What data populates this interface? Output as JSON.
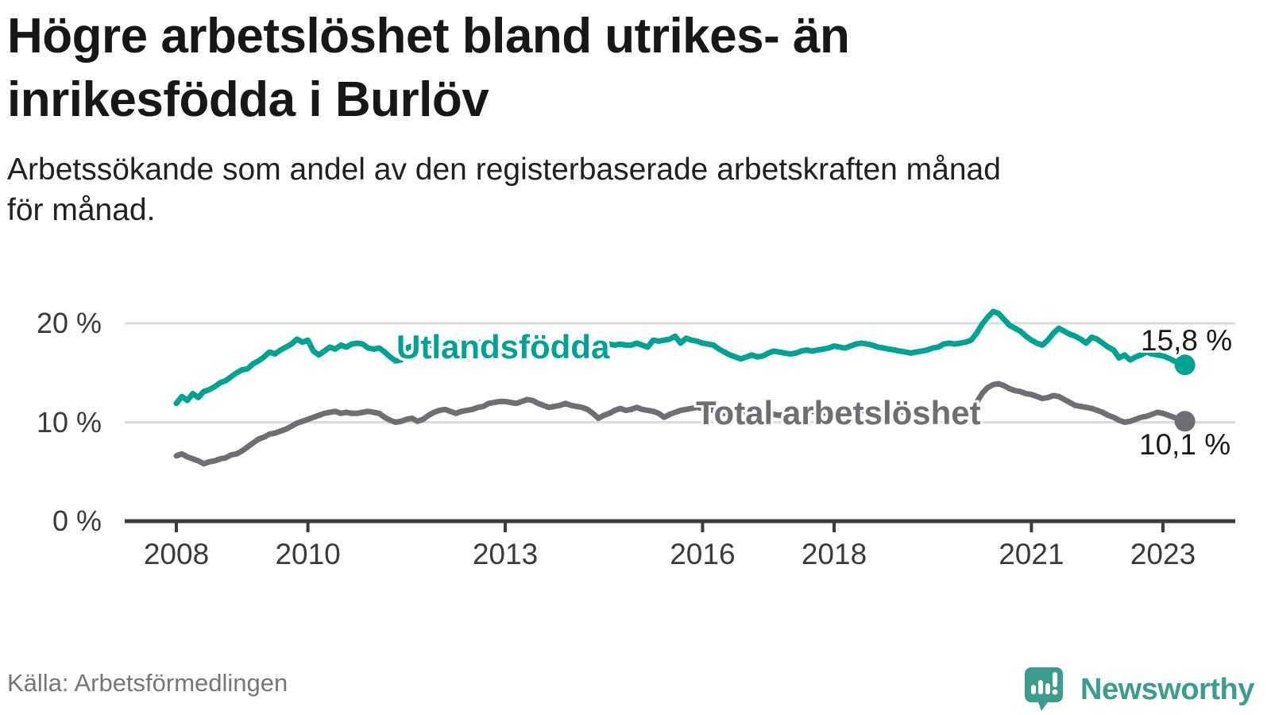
{
  "header": {
    "title_line1": "Högre arbetslöshet bland utrikes- än",
    "title_line2": "inrikesfödda i Burlöv",
    "subtitle_line1": "Arbetssökande som andel av den registerbaserade arbetskraften månad",
    "subtitle_line2": "för månad."
  },
  "chart_data": {
    "type": "line",
    "title": "Högre arbetslöshet bland utrikes- än inrikesfödda i Burlöv",
    "subtitle": "Arbetssökande som andel av den registerbaserade arbetskraften månad för månad.",
    "unit": "%",
    "x_start_year": 2008,
    "x_frequency": "monthly",
    "x_end_label": "2023",
    "ylim": [
      0,
      22.5
    ],
    "grid": "horizontal",
    "legend_position": "inline-labels",
    "y_ticks": [
      {
        "value": 0,
        "label": "0 %"
      },
      {
        "value": 10,
        "label": "10 %"
      },
      {
        "value": 20,
        "label": "20 %"
      }
    ],
    "x_ticks": [
      {
        "year": 2008,
        "label": "2008"
      },
      {
        "year": 2010,
        "label": "2010"
      },
      {
        "year": 2013,
        "label": "2013"
      },
      {
        "year": 2016,
        "label": "2016"
      },
      {
        "year": 2018,
        "label": "2018"
      },
      {
        "year": 2021,
        "label": "2021"
      },
      {
        "year": 2023,
        "label": "2023"
      }
    ],
    "series": [
      {
        "name": "Utlandsfödda",
        "color": "#00a294",
        "end_value": 15.8,
        "end_label": "15,8 %",
        "values": [
          11.9,
          12.6,
          12.2,
          12.9,
          12.5,
          13.1,
          13.3,
          13.6,
          14.0,
          14.2,
          14.6,
          15.0,
          15.3,
          15.4,
          15.9,
          16.2,
          16.6,
          17.1,
          16.9,
          17.3,
          17.6,
          17.9,
          18.4,
          18.1,
          18.3,
          17.2,
          16.8,
          17.2,
          17.6,
          17.4,
          17.8,
          17.6,
          17.9,
          18.0,
          17.9,
          17.5,
          17.4,
          17.5,
          17.1,
          16.6,
          16.2,
          16.3,
          17.5,
          17.7,
          17.6,
          17.8,
          17.9,
          17.7,
          17.8,
          18.0,
          17.9,
          18.1,
          18.0,
          17.8,
          17.9,
          18.1,
          18.0,
          17.9,
          18.0,
          17.8,
          17.9,
          18.1,
          18.2,
          18.0,
          17.8,
          17.9,
          18.0,
          17.8,
          17.7,
          17.9,
          18.0,
          17.9,
          18.0,
          17.8,
          17.9,
          17.7,
          17.8,
          17.6,
          17.7,
          17.9,
          17.8,
          17.9,
          17.8,
          17.8,
          18.0,
          17.8,
          17.6,
          18.3,
          18.2,
          18.3,
          18.4,
          18.7,
          18.0,
          18.5,
          18.3,
          18.2,
          18.0,
          17.9,
          17.8,
          17.4,
          17.1,
          16.8,
          16.6,
          16.4,
          16.6,
          16.8,
          16.6,
          16.7,
          17.0,
          17.2,
          17.1,
          17.0,
          16.9,
          17.0,
          17.2,
          17.3,
          17.2,
          17.3,
          17.4,
          17.5,
          17.7,
          17.6,
          17.5,
          17.7,
          17.9,
          18.0,
          17.9,
          17.8,
          17.6,
          17.5,
          17.4,
          17.3,
          17.2,
          17.1,
          17.0,
          17.1,
          17.2,
          17.3,
          17.5,
          17.6,
          17.9,
          18.0,
          17.9,
          18.0,
          18.1,
          18.3,
          19.0,
          19.9,
          20.6,
          21.2,
          21.0,
          20.4,
          19.8,
          19.5,
          19.2,
          18.7,
          18.3,
          18.0,
          17.8,
          18.3,
          19.0,
          19.5,
          19.2,
          18.9,
          18.7,
          18.4,
          18.0,
          18.6,
          18.4,
          18.0,
          17.6,
          17.3,
          16.5,
          16.8,
          16.3,
          16.6,
          16.8,
          17.1,
          16.9,
          16.8,
          16.7,
          16.5,
          16.2,
          16.0,
          15.8
        ]
      },
      {
        "name": "Total arbetslöshet",
        "color": "#6e6e74",
        "end_value": 10.1,
        "end_label": "10,1 %",
        "values": [
          6.6,
          6.8,
          6.5,
          6.3,
          6.1,
          5.8,
          6.0,
          6.1,
          6.3,
          6.4,
          6.7,
          6.8,
          7.1,
          7.5,
          7.9,
          8.3,
          8.5,
          8.8,
          8.9,
          9.1,
          9.3,
          9.6,
          9.9,
          10.1,
          10.3,
          10.5,
          10.7,
          10.9,
          11.0,
          11.1,
          10.9,
          11.0,
          10.9,
          10.9,
          11.0,
          11.1,
          11.0,
          10.9,
          10.5,
          10.2,
          10.0,
          10.1,
          10.3,
          10.4,
          10.1,
          10.3,
          10.7,
          11.0,
          11.2,
          11.3,
          11.1,
          10.9,
          11.1,
          11.2,
          11.3,
          11.5,
          11.6,
          11.9,
          12.0,
          12.1,
          12.1,
          12.0,
          11.9,
          12.1,
          12.3,
          12.2,
          11.9,
          11.7,
          11.5,
          11.6,
          11.7,
          11.9,
          11.7,
          11.6,
          11.5,
          11.3,
          10.9,
          10.4,
          10.7,
          10.9,
          11.2,
          11.4,
          11.2,
          11.3,
          11.5,
          11.3,
          11.2,
          11.1,
          10.9,
          10.5,
          10.8,
          11.0,
          11.2,
          11.3,
          11.4,
          11.5,
          11.4,
          11.3,
          11.2,
          11.0,
          10.9,
          10.8,
          10.7,
          10.8,
          10.9,
          11.0,
          10.9,
          11.0,
          10.9,
          10.8,
          10.7,
          10.8,
          10.9,
          11.0,
          10.9,
          11.0,
          11.1,
          11.0,
          10.9,
          11.0,
          11.1,
          11.0,
          10.9,
          11.0,
          11.1,
          11.2,
          11.1,
          11.0,
          10.9,
          11.0,
          11.1,
          11.0,
          11.1,
          11.0,
          10.9,
          11.0,
          11.1,
          11.2,
          11.1,
          11.2,
          11.3,
          11.2,
          11.1,
          11.2,
          11.2,
          11.4,
          12.0,
          12.9,
          13.5,
          13.8,
          13.9,
          13.7,
          13.4,
          13.2,
          13.1,
          12.9,
          12.8,
          12.6,
          12.4,
          12.5,
          12.7,
          12.6,
          12.3,
          12.0,
          11.7,
          11.6,
          11.5,
          11.4,
          11.2,
          11.0,
          10.7,
          10.5,
          10.2,
          10.0,
          10.1,
          10.3,
          10.5,
          10.6,
          10.8,
          11.0,
          10.9,
          10.7,
          10.5,
          10.3,
          10.1
        ]
      }
    ]
  },
  "footer": {
    "source": "Källa: Arbetsförmedlingen",
    "brand": "Newsworthy"
  }
}
